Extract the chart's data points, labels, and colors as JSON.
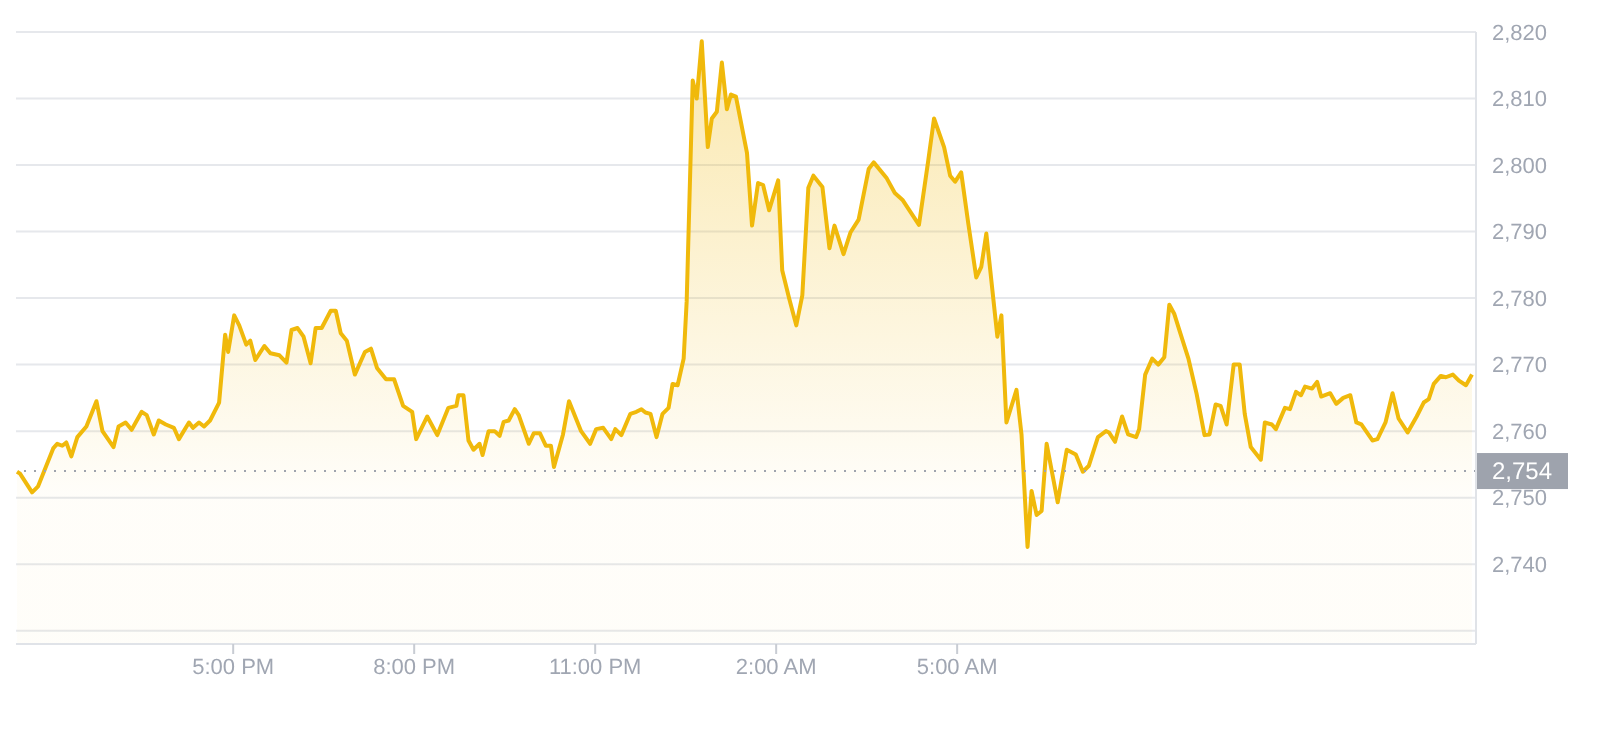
{
  "chart_data": {
    "type": "area",
    "x": [
      "2000-01-01T13:25",
      "2000-01-01T13:28",
      "2000-01-01T13:40",
      "2000-01-01T13:46",
      "2000-01-01T14:01",
      "2000-01-01T14:05",
      "2000-01-01T14:10",
      "2000-01-01T14:14",
      "2000-01-01T14:19",
      "2000-01-01T14:25",
      "2000-01-01T14:34",
      "2000-01-01T14:44",
      "2000-01-01T14:50",
      "2000-01-01T15:01",
      "2000-01-01T15:06",
      "2000-01-01T15:13",
      "2000-01-01T15:19",
      "2000-01-01T15:29",
      "2000-01-01T15:34",
      "2000-01-01T15:41",
      "2000-01-01T15:46",
      "2000-01-01T15:53",
      "2000-01-01T16:01",
      "2000-01-01T16:06",
      "2000-01-01T16:16",
      "2000-01-01T16:20",
      "2000-01-01T16:26",
      "2000-01-01T16:31",
      "2000-01-01T16:37",
      "2000-01-01T16:46",
      "2000-01-01T16:52",
      "2000-01-01T16:55",
      "2000-01-01T17:01",
      "2000-01-01T17:06",
      "2000-01-01T17:13",
      "2000-01-01T17:17",
      "2000-01-01T17:22",
      "2000-01-01T17:31",
      "2000-01-01T17:37",
      "2000-01-01T17:46",
      "2000-01-01T17:53",
      "2000-01-01T17:58",
      "2000-01-01T18:04",
      "2000-01-01T18:10",
      "2000-01-01T18:17",
      "2000-01-01T18:22",
      "2000-01-01T18:28",
      "2000-01-01T18:37",
      "2000-01-01T18:42",
      "2000-01-01T18:47",
      "2000-01-01T18:53",
      "2000-01-01T19:01",
      "2000-01-01T19:11",
      "2000-01-01T19:17",
      "2000-01-01T19:23",
      "2000-01-01T19:32",
      "2000-01-01T19:40",
      "2000-01-01T19:49",
      "2000-01-01T19:58",
      "2000-01-01T20:02",
      "2000-01-01T20:13",
      "2000-01-01T20:23",
      "2000-01-01T20:34",
      "2000-01-01T20:42",
      "2000-01-01T20:44",
      "2000-01-01T20:49",
      "2000-01-01T20:54",
      "2000-01-01T20:59",
      "2000-01-01T21:05",
      "2000-01-01T21:08",
      "2000-01-01T21:14",
      "2000-01-01T21:20",
      "2000-01-01T21:25",
      "2000-01-01T21:29",
      "2000-01-01T21:34",
      "2000-01-01T21:40",
      "2000-01-01T21:44",
      "2000-01-01T21:54",
      "2000-01-01T21:59",
      "2000-01-01T22:05",
      "2000-01-01T22:11",
      "2000-01-01T22:16",
      "2000-01-01T22:19",
      "2000-01-01T22:28",
      "2000-01-01T22:34",
      "2000-01-01T22:46",
      "2000-01-01T22:55",
      "2000-01-01T23:01",
      "2000-01-01T23:08",
      "2000-01-01T23:16",
      "2000-01-01T23:20",
      "2000-01-01T23:26",
      "2000-01-01T23:35",
      "2000-01-01T23:41",
      "2000-01-01T23:46",
      "2000-01-01T23:50",
      "2000-01-01T23:55",
      "2000-01-02T00:01",
      "2000-01-02T00:07",
      "2000-01-02T00:13",
      "2000-01-02T00:17",
      "2000-01-02T00:22",
      "2000-01-02T00:28",
      "2000-01-02T00:31",
      "2000-01-02T00:37",
      "2000-01-02T00:41",
      "2000-01-02T00:46",
      "2000-01-02T00:52",
      "2000-01-02T00:56",
      "2000-01-02T01:01",
      "2000-01-02T01:06",
      "2000-01-02T01:11",
      "2000-01-02T01:15",
      "2000-01-02T01:20",
      "2000-01-02T01:31",
      "2000-01-02T01:36",
      "2000-01-02T01:42",
      "2000-01-02T01:47",
      "2000-01-02T01:53",
      "2000-01-02T02:02",
      "2000-01-02T02:06",
      "2000-01-02T02:13",
      "2000-01-02T02:20",
      "2000-01-02T02:26",
      "2000-01-02T02:32",
      "2000-01-02T02:37",
      "2000-01-02T02:46",
      "2000-01-02T02:53",
      "2000-01-02T02:58",
      "2000-01-02T03:07",
      "2000-01-02T03:14",
      "2000-01-02T03:22",
      "2000-01-02T03:32",
      "2000-01-02T03:37",
      "2000-01-02T03:50",
      "2000-01-02T03:58",
      "2000-01-02T04:06",
      "2000-01-02T04:22",
      "2000-01-02T04:31",
      "2000-01-02T04:37",
      "2000-01-02T04:47",
      "2000-01-02T04:53",
      "2000-01-02T04:58",
      "2000-01-02T05:04",
      "2000-01-02T05:11",
      "2000-01-02T05:19",
      "2000-01-02T05:24",
      "2000-01-02T05:29",
      "2000-01-02T05:40",
      "2000-01-02T05:44",
      "2000-01-02T05:49",
      "2000-01-02T05:59",
      "2000-01-02T06:04",
      "2000-01-02T06:10",
      "2000-01-02T06:14",
      "2000-01-02T06:19",
      "2000-01-02T06:24",
      "2000-01-02T06:29",
      "2000-01-02T06:40",
      "2000-01-02T06:49",
      "2000-01-02T06:58",
      "2000-01-02T07:05",
      "2000-01-02T07:11",
      "2000-01-02T07:20",
      "2000-01-02T07:28",
      "2000-01-02T07:31",
      "2000-01-02T07:37",
      "2000-01-02T07:44",
      "2000-01-02T07:50",
      "2000-01-02T07:58",
      "2000-01-02T08:01",
      "2000-01-02T08:07",
      "2000-01-02T08:14",
      "2000-01-02T08:20",
      "2000-01-02T08:26",
      "2000-01-02T08:31",
      "2000-01-02T08:36",
      "2000-01-02T08:42",
      "2000-01-02T08:50",
      "2000-01-02T08:58",
      "2000-01-02T09:06",
      "2000-01-02T09:11",
      "2000-01-02T09:17",
      "2000-01-02T09:22",
      "2000-01-02T09:28",
      "2000-01-02T09:35",
      "2000-01-02T09:41",
      "2000-01-02T09:46",
      "2000-01-02T09:52",
      "2000-01-02T10:02",
      "2000-01-02T10:06",
      "2000-01-02T10:13",
      "2000-01-02T10:17",
      "2000-01-02T10:26",
      "2000-01-02T10:31",
      "2000-01-02T10:37",
      "2000-01-02T10:42",
      "2000-01-02T10:46",
      "2000-01-02T10:53",
      "2000-01-02T10:58",
      "2000-01-02T11:02",
      "2000-01-02T11:11",
      "2000-01-02T11:17",
      "2000-01-02T11:24",
      "2000-01-02T11:31",
      "2000-01-02T11:37",
      "2000-01-02T11:42",
      "2000-01-02T11:53",
      "2000-01-02T11:58",
      "2000-01-02T12:06",
      "2000-01-02T12:13",
      "2000-01-02T12:19",
      "2000-01-02T12:28",
      "2000-01-02T12:37",
      "2000-01-02T12:44",
      "2000-01-02T12:49",
      "2000-01-02T12:54",
      "2000-01-02T13:01",
      "2000-01-02T13:06",
      "2000-01-02T13:13",
      "2000-01-02T13:19",
      "2000-01-02T13:26",
      "2000-01-02T13:32"
    ],
    "series": [
      {
        "color": "#f0b90b",
        "values": [
          2753.9,
          2753.6,
          2750.8,
          2751.7,
          2757.4,
          2758.1,
          2757.8,
          2758.3,
          2756.2,
          2759.1,
          2760.7,
          2764.5,
          2760.0,
          2757.6,
          2760.7,
          2761.3,
          2760.2,
          2762.9,
          2762.4,
          2759.5,
          2761.6,
          2761.0,
          2760.5,
          2758.8,
          2761.3,
          2760.5,
          2761.3,
          2760.7,
          2761.6,
          2764.3,
          2774.5,
          2771.9,
          2777.4,
          2775.9,
          2773.0,
          2773.6,
          2770.7,
          2772.8,
          2771.7,
          2771.4,
          2770.3,
          2775.2,
          2775.5,
          2774.2,
          2770.2,
          2775.5,
          2775.5,
          2778.1,
          2778.1,
          2774.7,
          2773.6,
          2768.5,
          2771.9,
          2772.4,
          2769.5,
          2767.8,
          2767.8,
          2763.8,
          2762.9,
          2758.8,
          2762.2,
          2759.4,
          2763.5,
          2763.8,
          2765.4,
          2765.4,
          2758.6,
          2757.2,
          2758.1,
          2756.4,
          2760.0,
          2760.0,
          2759.3,
          2761.4,
          2761.6,
          2763.3,
          2762.4,
          2758.1,
          2759.7,
          2759.7,
          2757.8,
          2757.8,
          2754.6,
          2759.5,
          2764.5,
          2760.0,
          2758.1,
          2760.3,
          2760.5,
          2758.8,
          2760.3,
          2759.4,
          2762.6,
          2762.9,
          2763.3,
          2762.8,
          2762.6,
          2759.1,
          2762.6,
          2763.5,
          2767.1,
          2766.9,
          2770.9,
          2779.5,
          2812.7,
          2810.0,
          2818.6,
          2802.7,
          2807.0,
          2808.0,
          2815.4,
          2808.4,
          2810.6,
          2810.3,
          2801.8,
          2790.9,
          2797.3,
          2797.0,
          2793.2,
          2797.7,
          2784.2,
          2779.9,
          2775.9,
          2780.4,
          2796.6,
          2798.4,
          2796.7,
          2787.5,
          2790.9,
          2786.6,
          2789.9,
          2791.8,
          2799.4,
          2800.4,
          2798.0,
          2795.8,
          2794.7,
          2791.0,
          2800.4,
          2807.0,
          2802.7,
          2798.4,
          2797.5,
          2798.9,
          2791.3,
          2783.1,
          2784.7,
          2789.7,
          2774.2,
          2777.4,
          2761.3,
          2766.2,
          2759.5,
          2742.6,
          2751.0,
          2747.4,
          2748.0,
          2758.1,
          2749.3,
          2757.2,
          2756.5,
          2753.9,
          2754.8,
          2759.1,
          2760.0,
          2759.8,
          2758.4,
          2762.2,
          2759.5,
          2759.1,
          2760.3,
          2768.5,
          2770.9,
          2770.0,
          2771.1,
          2779.0,
          2777.6,
          2774.7,
          2770.9,
          2765.7,
          2759.4,
          2759.5,
          2764.0,
          2763.8,
          2761.0,
          2770.0,
          2770.0,
          2762.6,
          2757.6,
          2755.7,
          2761.3,
          2761.0,
          2760.3,
          2763.5,
          2763.3,
          2765.9,
          2765.4,
          2766.7,
          2766.4,
          2767.4,
          2765.2,
          2765.7,
          2764.1,
          2765.0,
          2765.4,
          2761.3,
          2761.0,
          2758.6,
          2758.8,
          2761.3,
          2765.7,
          2761.9,
          2759.8,
          2762.2,
          2764.3,
          2764.8,
          2767.1,
          2768.3,
          2768.1,
          2768.5,
          2767.6,
          2766.9,
          2768.5
        ]
      }
    ],
    "xlim": [
      "2000-01-01T13:24",
      "2000-01-02T13:36"
    ],
    "xticks": [
      {
        "value": "2000-01-01T17:00",
        "label": "5:00 PM"
      },
      {
        "value": "2000-01-01T20:00",
        "label": "8:00 PM"
      },
      {
        "value": "2000-01-01T23:00",
        "label": "11:00 PM"
      },
      {
        "value": "2000-01-02T02:00",
        "label": "2:00 AM"
      },
      {
        "value": "2000-01-02T05:00",
        "label": "5:00 AM"
      }
    ],
    "ylim": [
      2728,
      2820
    ],
    "yticks": [
      {
        "value": 2730,
        "label": null
      },
      {
        "value": 2740,
        "label": "2,740"
      },
      {
        "value": 2750,
        "label": "2,750"
      },
      {
        "value": 2760,
        "label": "2,760"
      },
      {
        "value": 2770,
        "label": "2,770"
      },
      {
        "value": 2780,
        "label": "2,780"
      },
      {
        "value": 2790,
        "label": "2,790"
      },
      {
        "value": 2800,
        "label": "2,800"
      },
      {
        "value": 2810,
        "label": "2,810"
      },
      {
        "value": 2820,
        "label": "2,820"
      }
    ],
    "grid": "y",
    "ref_lines": [
      {
        "axis": "y",
        "value": 2754,
        "label": "2,754",
        "line_style": "dotted",
        "color": "#9ea3ad"
      }
    ]
  }
}
